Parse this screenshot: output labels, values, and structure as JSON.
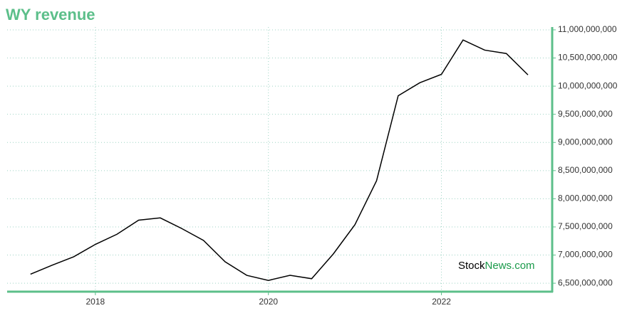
{
  "chart_data": {
    "type": "line",
    "title": "WY revenue",
    "watermark": [
      "Stock",
      "News.com"
    ],
    "x": [
      2017.25,
      2017.5,
      2017.75,
      2018.0,
      2018.25,
      2018.5,
      2018.75,
      2019.0,
      2019.25,
      2019.5,
      2019.75,
      2020.0,
      2020.25,
      2020.5,
      2020.75,
      2021.0,
      2021.25,
      2021.5,
      2021.75,
      2022.0,
      2022.25,
      2022.5,
      2022.75,
      2023.0
    ],
    "series": [
      {
        "name": "WY revenue",
        "color": "#000000",
        "values": [
          6660000000,
          6820000000,
          6970000000,
          7190000000,
          7370000000,
          7620000000,
          7660000000,
          7470000000,
          7260000000,
          6880000000,
          6640000000,
          6550000000,
          6640000000,
          6580000000,
          7020000000,
          7540000000,
          8320000000,
          9830000000,
          10060000000,
          10210000000,
          10820000000,
          10640000000,
          10580000000,
          10200000000
        ]
      }
    ],
    "xlim": [
      2016.98,
      2023.28
    ],
    "xticks": [
      2018,
      2020,
      2022
    ],
    "ylim": [
      6350000000,
      11050000000
    ],
    "yticks": [
      {
        "value": 6500000000,
        "label": "6,500,000,000"
      },
      {
        "value": 7000000000,
        "label": "7,000,000,000"
      },
      {
        "value": 7500000000,
        "label": "7,500,000,000"
      },
      {
        "value": 8000000000,
        "label": "8,000,000,000"
      },
      {
        "value": 8500000000,
        "label": "8,500,000,000"
      },
      {
        "value": 9000000000,
        "label": "9,000,000,000"
      },
      {
        "value": 9500000000,
        "label": "9,500,000,000"
      },
      {
        "value": 10000000000,
        "label": "10,000,000,000"
      },
      {
        "value": 10500000000,
        "label": "10,500,000,000"
      },
      {
        "value": 11000000000,
        "label": "11,000,000,000"
      }
    ],
    "grid": true,
    "axis_color": "#5cbf8a"
  }
}
